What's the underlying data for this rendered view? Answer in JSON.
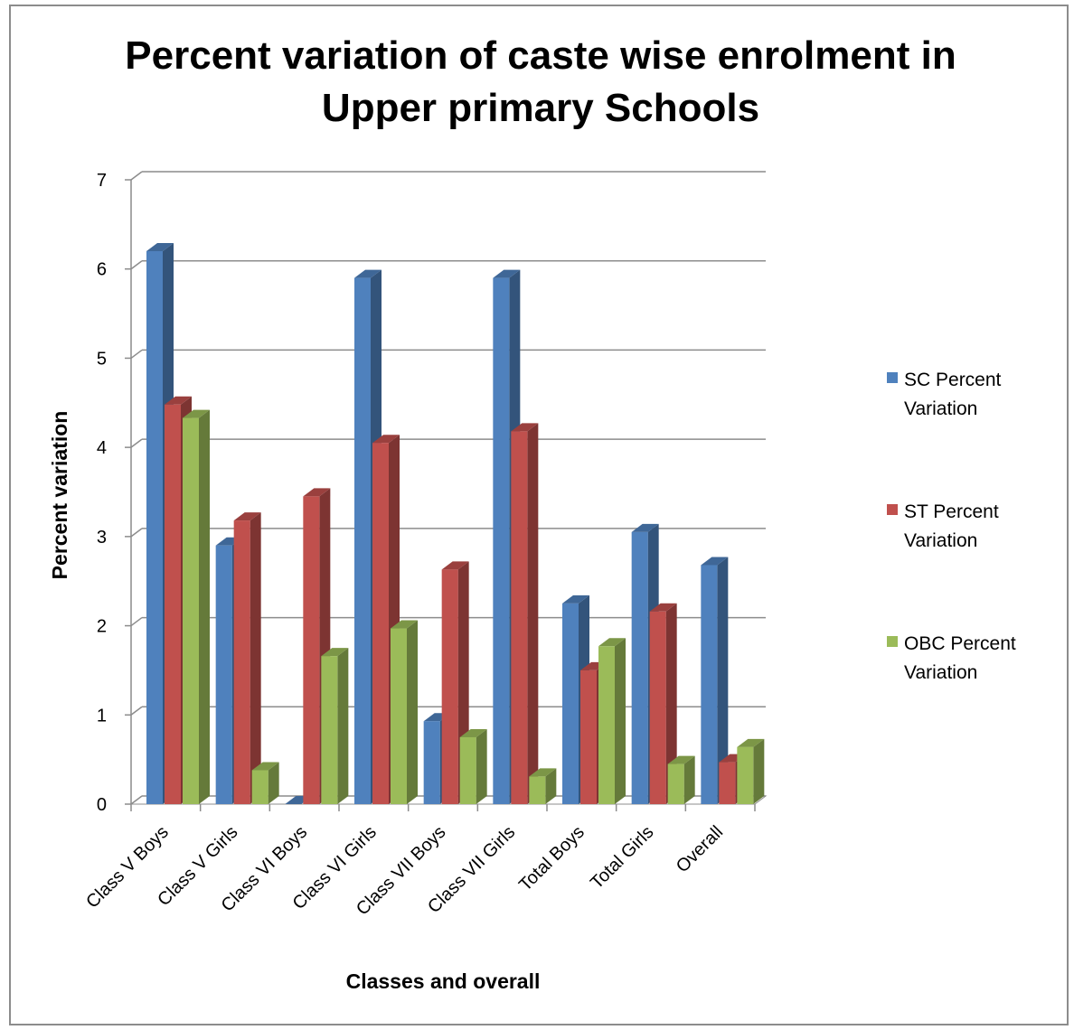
{
  "chart_data": {
    "type": "bar",
    "title_lines": [
      "Percent variation of caste wise enrolment in",
      "Upper primary Schools"
    ],
    "xlabel": "Classes and overall",
    "ylabel": "Percent variation",
    "ylim": [
      0,
      7
    ],
    "yticks": [
      0,
      1,
      2,
      3,
      4,
      5,
      6,
      7
    ],
    "grid": true,
    "legend_position": "right",
    "categories": [
      "Class V Boys",
      "Class V Girls",
      "Class VI Boys",
      "Class VI Girls",
      "Class VII Boys",
      "Class VII Girls",
      "Total Boys",
      "Total Girls",
      "Overall"
    ],
    "series": [
      {
        "name": "SC Percent Variation",
        "legend_lines": [
          "SC Percent",
          "Variation"
        ],
        "color": "#4F81BD",
        "values": [
          6.2,
          2.9,
          0.0,
          5.9,
          0.93,
          5.9,
          2.25,
          3.05,
          2.68
        ]
      },
      {
        "name": "ST Percent Variation",
        "legend_lines": [
          "ST Percent",
          "Variation"
        ],
        "color": "#C0504D",
        "values": [
          4.48,
          3.18,
          3.45,
          4.05,
          2.63,
          4.18,
          1.5,
          2.16,
          0.47
        ]
      },
      {
        "name": "OBC Percent Variation",
        "legend_lines": [
          "OBC Percent",
          "Variation"
        ],
        "color": "#9BBB59",
        "values": [
          4.33,
          0.38,
          1.66,
          1.97,
          0.75,
          0.31,
          1.77,
          0.45,
          0.64
        ]
      }
    ]
  }
}
